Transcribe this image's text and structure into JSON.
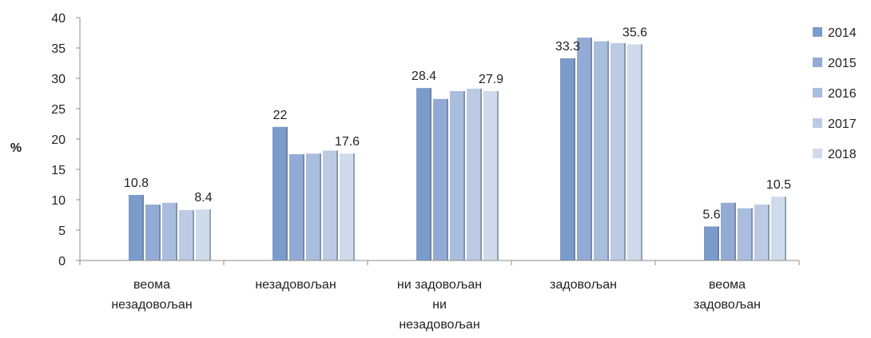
{
  "chart_data": {
    "type": "bar",
    "ylabel": "%",
    "ylim": [
      0,
      40
    ],
    "yticks": [
      0,
      5,
      10,
      15,
      20,
      25,
      30,
      35,
      40
    ],
    "categories": [
      [
        "веома",
        "незадовољан"
      ],
      [
        "незадовољан"
      ],
      [
        "ни задовољан",
        "ни",
        "незадовољан"
      ],
      [
        "задовољан"
      ],
      [
        "веома",
        "задовољан"
      ]
    ],
    "series": [
      {
        "name": "2014",
        "color": "#7b9bcb",
        "values": [
          10.8,
          22.0,
          28.4,
          33.3,
          5.6
        ]
      },
      {
        "name": "2015",
        "color": "#93abd4",
        "values": [
          9.2,
          17.5,
          26.6,
          36.7,
          9.5
        ]
      },
      {
        "name": "2016",
        "color": "#a9bddc",
        "values": [
          9.5,
          17.6,
          27.9,
          36.1,
          8.6
        ]
      },
      {
        "name": "2017",
        "color": "#bccbe4",
        "values": [
          8.3,
          18.1,
          28.3,
          35.8,
          9.2
        ]
      },
      {
        "name": "2018",
        "color": "#cfdbec",
        "values": [
          8.4,
          17.6,
          27.9,
          35.6,
          10.5
        ]
      }
    ],
    "data_labels": [
      {
        "category": 0,
        "series": 0,
        "text": "10.8"
      },
      {
        "category": 0,
        "series": 4,
        "text": "8.4"
      },
      {
        "category": 1,
        "series": 0,
        "text": "22"
      },
      {
        "category": 1,
        "series": 4,
        "text": "17.6"
      },
      {
        "category": 2,
        "series": 0,
        "text": "28.4"
      },
      {
        "category": 2,
        "series": 4,
        "text": "27.9"
      },
      {
        "category": 3,
        "series": 0,
        "text": "33.3"
      },
      {
        "category": 3,
        "series": 4,
        "text": "35.6"
      },
      {
        "category": 4,
        "series": 0,
        "text": "5.6"
      },
      {
        "category": 4,
        "series": 4,
        "text": "10.5"
      }
    ],
    "legend_position": "right",
    "grid": false
  }
}
